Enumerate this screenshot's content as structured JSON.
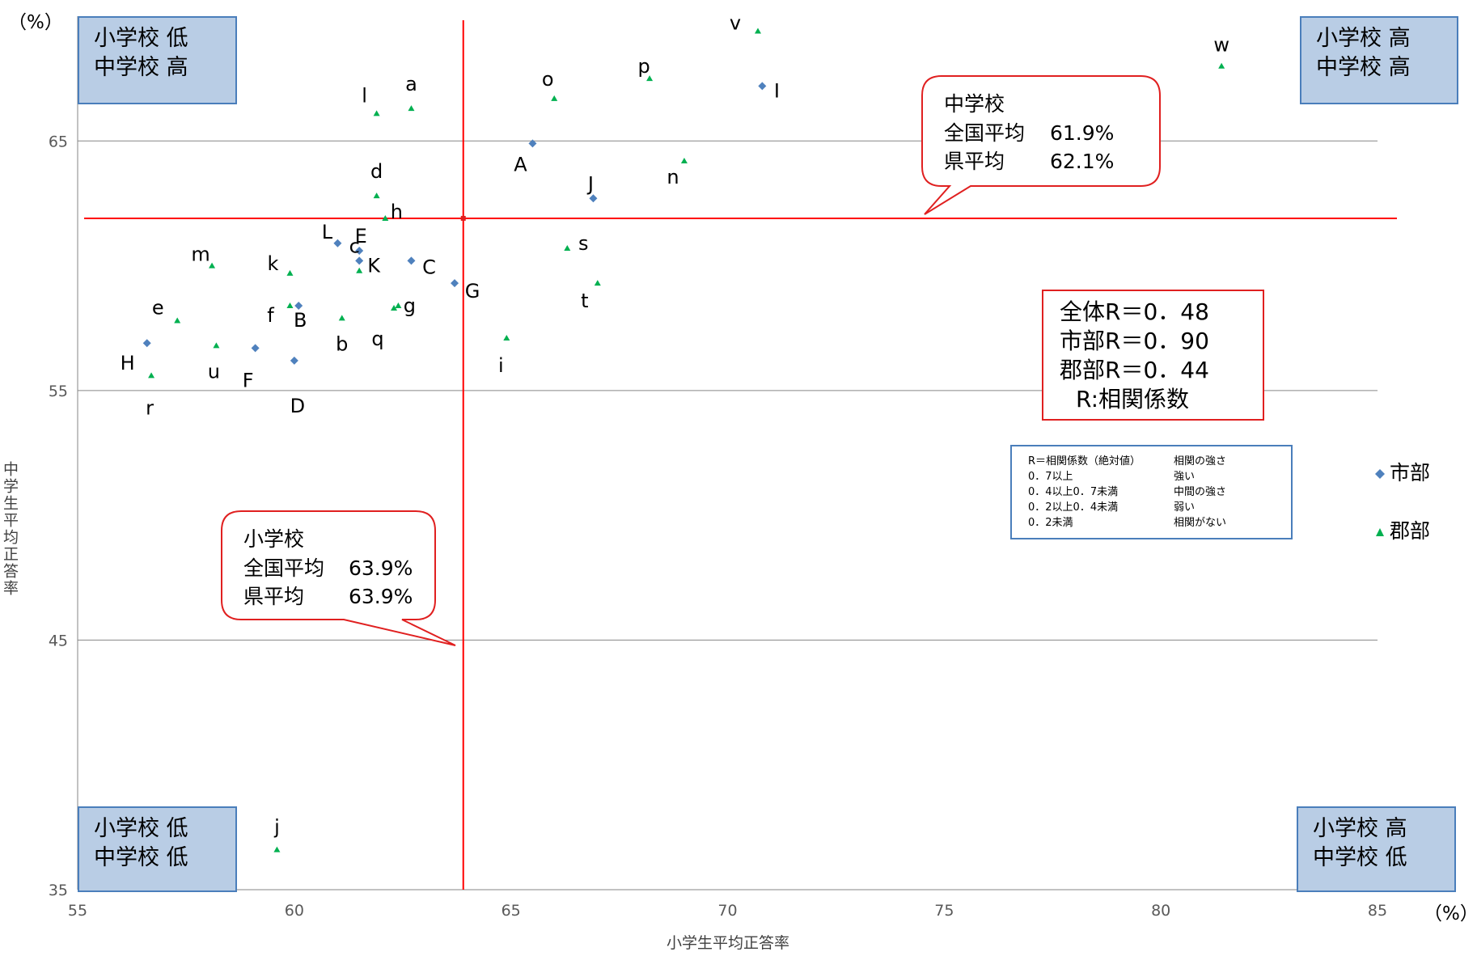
{
  "chart_data": {
    "type": "scatter",
    "title": "",
    "xlabel": "小学生平均正答率",
    "ylabel": "中学生平均正答率",
    "x_unit": "（%）",
    "y_unit": "（%）",
    "xlim": [
      55,
      85
    ],
    "ylim": [
      35,
      70
    ],
    "x_ticks": [
      "55",
      "60",
      "65",
      "70",
      "75",
      "80",
      "85"
    ],
    "y_ticks": [
      "35",
      "45",
      "55",
      "65"
    ],
    "y_tick_values": [
      35,
      45,
      55,
      65
    ],
    "grid": "horizontal",
    "series": [
      {
        "name": "市部",
        "color": "#4f81bd",
        "marker": "diamond",
        "points": [
          {
            "label": "A",
            "x": 65.5,
            "y": 64.9
          },
          {
            "label": "B",
            "x": 60.1,
            "y": 58.4
          },
          {
            "label": "C",
            "x": 62.7,
            "y": 60.2
          },
          {
            "label": "D",
            "x": 60.0,
            "y": 56.2
          },
          {
            "label": "E",
            "x": 61.5,
            "y": 60.6
          },
          {
            "label": "F",
            "x": 59.1,
            "y": 56.7
          },
          {
            "label": "G",
            "x": 63.7,
            "y": 59.3
          },
          {
            "label": "H",
            "x": 56.6,
            "y": 56.9
          },
          {
            "label": "I",
            "x": 70.8,
            "y": 67.2
          },
          {
            "label": "J",
            "x": 66.9,
            "y": 62.7
          },
          {
            "label": "K",
            "x": 61.5,
            "y": 60.2
          },
          {
            "label": "L",
            "x": 61.0,
            "y": 60.9
          }
        ]
      },
      {
        "name": "郡部",
        "color": "#00b050",
        "marker": "triangle",
        "points": [
          {
            "label": "a",
            "x": 62.7,
            "y": 66.3
          },
          {
            "label": "b",
            "x": 61.1,
            "y": 57.9
          },
          {
            "label": "c",
            "x": 61.5,
            "y": 59.8
          },
          {
            "label": "d",
            "x": 61.9,
            "y": 62.8
          },
          {
            "label": "e",
            "x": 57.3,
            "y": 57.8
          },
          {
            "label": "f",
            "x": 59.9,
            "y": 58.4
          },
          {
            "label": "g",
            "x": 62.4,
            "y": 58.4
          },
          {
            "label": "h",
            "x": 62.1,
            "y": 61.9
          },
          {
            "label": "i",
            "x": 64.9,
            "y": 57.1
          },
          {
            "label": "j",
            "x": 59.6,
            "y": 36.6
          },
          {
            "label": "k",
            "x": 59.9,
            "y": 59.7
          },
          {
            "label": "l",
            "x": 61.9,
            "y": 66.1
          },
          {
            "label": "m",
            "x": 58.1,
            "y": 60.0
          },
          {
            "label": "n",
            "x": 69.0,
            "y": 64.2
          },
          {
            "label": "o",
            "x": 66.0,
            "y": 66.7
          },
          {
            "label": "p",
            "x": 68.2,
            "y": 67.5
          },
          {
            "label": "q",
            "x": 62.3,
            "y": 58.3
          },
          {
            "label": "r",
            "x": 56.7,
            "y": 55.6
          },
          {
            "label": "s",
            "x": 66.3,
            "y": 60.7
          },
          {
            "label": "t",
            "x": 67.0,
            "y": 59.3
          },
          {
            "label": "u",
            "x": 58.2,
            "y": 56.8
          },
          {
            "label": "v",
            "x": 70.7,
            "y": 69.4
          },
          {
            "label": "w",
            "x": 81.4,
            "y": 68.0
          }
        ]
      }
    ],
    "reference_lines": {
      "vertical": {
        "x": 63.9,
        "color": "#ff0000"
      },
      "horizontal": {
        "y": 61.9,
        "color": "#ff0000"
      }
    }
  },
  "quadrants": {
    "top_left": [
      "小学校 低",
      "中学校 高"
    ],
    "top_right": [
      "小学校 高",
      "中学校 高"
    ],
    "bottom_left": [
      "小学校 低",
      "中学校 低"
    ],
    "bottom_right": [
      "小学校 高",
      "中学校 低"
    ]
  },
  "callouts": {
    "junior": {
      "title": "中学校",
      "national_label": "全国平均",
      "national_value": "61.9%",
      "pref_label": "県平均",
      "pref_value": "62.1%"
    },
    "elementary": {
      "title": "小学校",
      "national_label": "全国平均",
      "national_value": "63.9%",
      "pref_label": "県平均",
      "pref_value": "63.9%"
    }
  },
  "correlation_box": {
    "line1": "全体R＝0．48",
    "line2": "市部R＝0．90",
    "line3": "郡部R＝0．44",
    "line4": "R:相関係数"
  },
  "correlation_table": {
    "header": [
      "R＝相関係数（絶対値）",
      "相関の強さ"
    ],
    "rows": [
      [
        "0．7以上",
        "強い"
      ],
      [
        "0．4以上0．7未満",
        "中間の強さ"
      ],
      [
        "0．2以上0．4未満",
        "弱い"
      ],
      [
        "0．2未満",
        "相関がない"
      ]
    ]
  },
  "legend": {
    "city": "市部",
    "county": "郡部"
  }
}
